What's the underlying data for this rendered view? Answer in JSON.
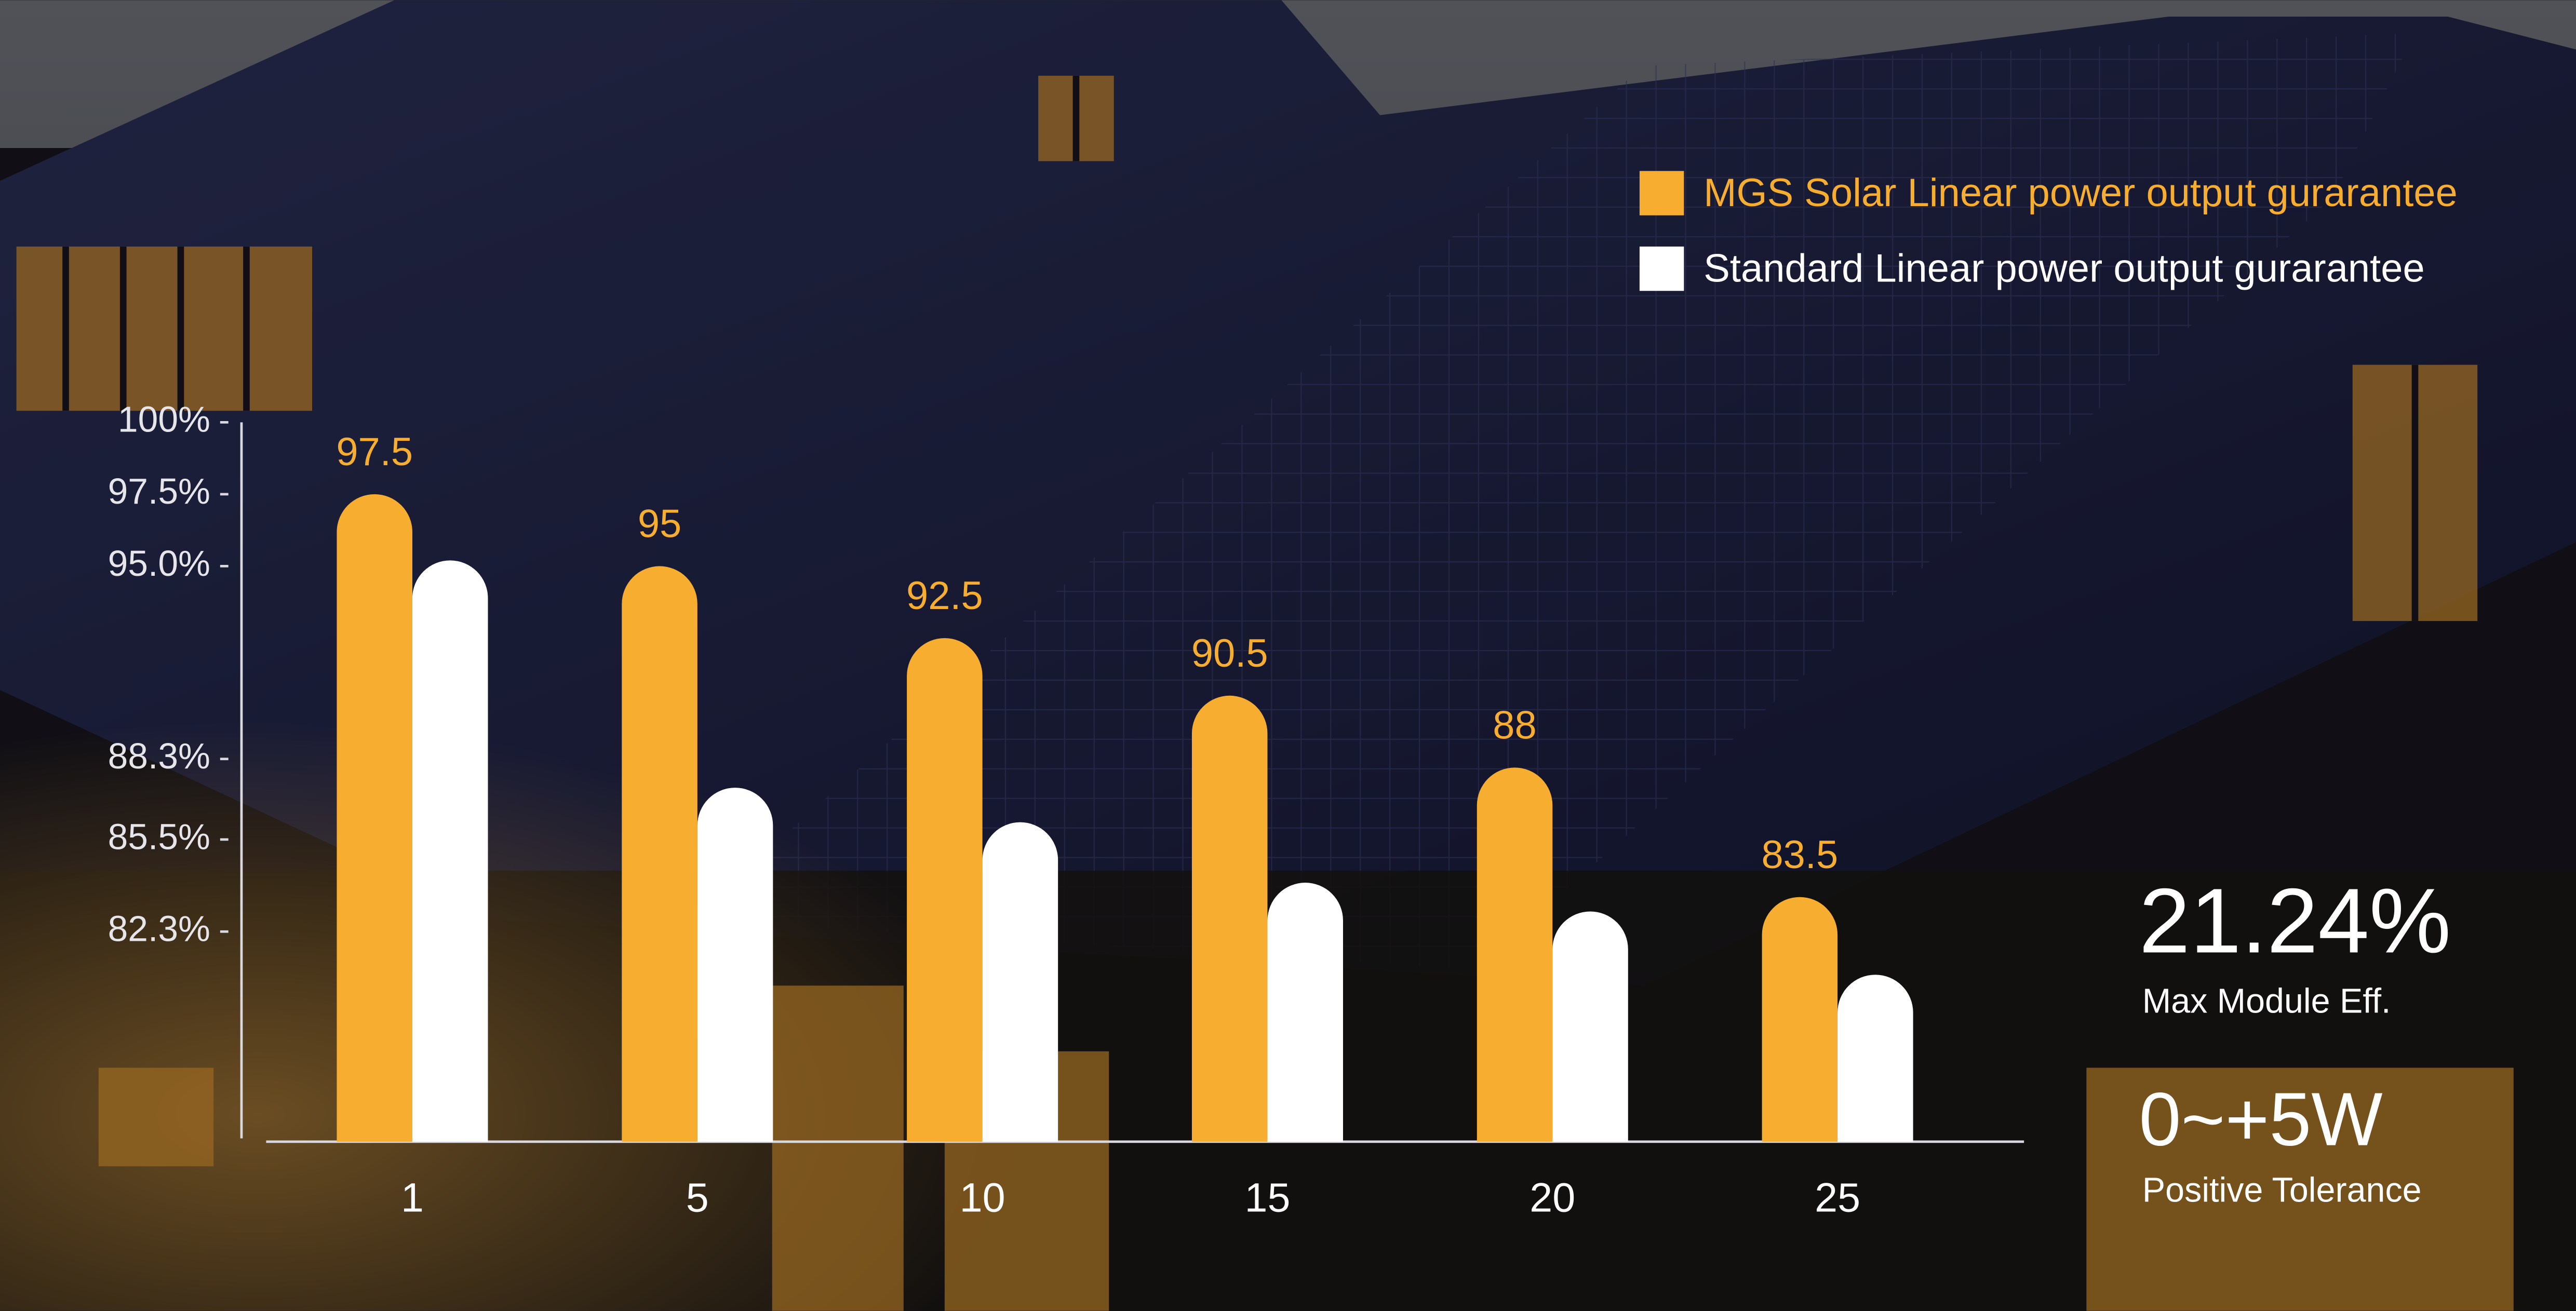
{
  "chart_data": {
    "type": "bar",
    "categories": [
      "1",
      "5",
      "10",
      "15",
      "20",
      "25"
    ],
    "series": [
      {
        "name": "MGS Solar Linear power output gurarantee",
        "color": "#f7ad2f",
        "values": [
          97.5,
          95,
          92.5,
          90.5,
          88,
          83.5
        ]
      },
      {
        "name": "Standard Linear power output gurarantee",
        "color": "#ffffff",
        "values": [
          95.2,
          87.3,
          86.1,
          84.0,
          83.0,
          80.8
        ]
      }
    ],
    "ylim": [
      75,
      100
    ],
    "yticks": [
      {
        "value": 100,
        "label": "100%"
      },
      {
        "value": 97.5,
        "label": "97.5%"
      },
      {
        "value": 95,
        "label": "95.0%"
      },
      {
        "value": 88.3,
        "label": "88.3%"
      },
      {
        "value": 85.5,
        "label": "85.5%"
      },
      {
        "value": 82.3,
        "label": "82.3%"
      }
    ],
    "legend": "top-right",
    "highlights": [
      {
        "value": "21.24%",
        "caption": "Max  Module Eff."
      },
      {
        "value": "0~+5W",
        "caption": "Positive Tolerance"
      }
    ]
  }
}
